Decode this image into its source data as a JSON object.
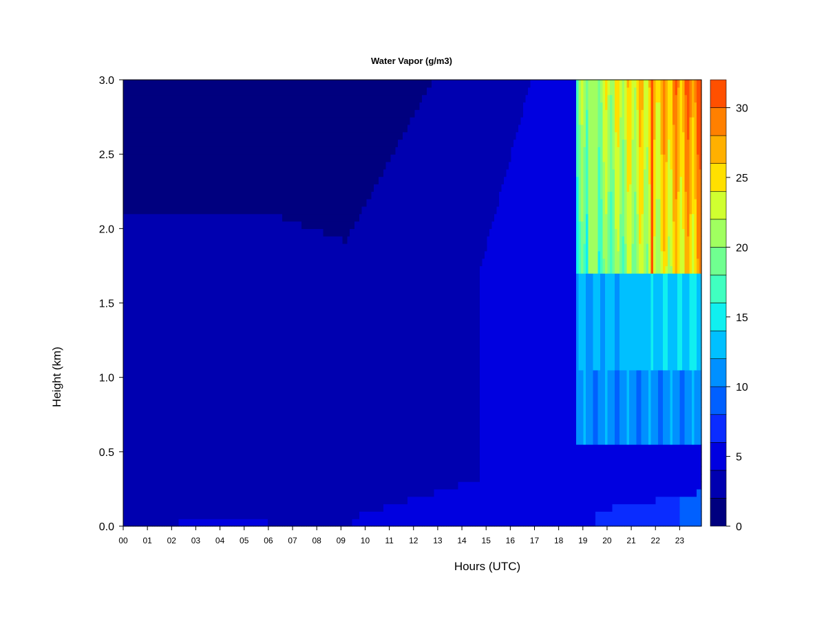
{
  "chart_data": {
    "type": "heatmap",
    "title": "Water Vapor (g/m3)",
    "xlabel": "Hours (UTC)",
    "ylabel": "Height (km)",
    "x_ticks": [
      "00",
      "01",
      "02",
      "03",
      "04",
      "05",
      "06",
      "07",
      "08",
      "09",
      "10",
      "11",
      "12",
      "13",
      "14",
      "15",
      "16",
      "17",
      "18",
      "19",
      "20",
      "21",
      "22",
      "23"
    ],
    "xlim": [
      0,
      23.9
    ],
    "y_ticks": [
      "0.0",
      "0.5",
      "1.0",
      "1.5",
      "2.0",
      "2.5",
      "3.0"
    ],
    "ylim": [
      0,
      3.0
    ],
    "colorbar": {
      "ticks": [
        "0",
        "5",
        "10",
        "15",
        "20",
        "25",
        "30"
      ],
      "range": [
        0,
        32
      ],
      "levels": [
        0,
        2,
        4,
        6,
        8,
        10,
        12,
        14,
        16,
        18,
        20,
        22,
        24,
        26,
        28,
        30,
        32
      ],
      "colors": [
        "#00007F",
        "#0000B0",
        "#0000E0",
        "#0A2CFF",
        "#0060FF",
        "#0090FF",
        "#00C0FF",
        "#10F0F0",
        "#40FFC0",
        "#70FF90",
        "#A0FF60",
        "#D0FF30",
        "#FFE000",
        "#FFB000",
        "#FF8000",
        "#FF5000",
        "#FF1E00",
        "#D00000",
        "#8B0000"
      ]
    },
    "grid": false
  }
}
